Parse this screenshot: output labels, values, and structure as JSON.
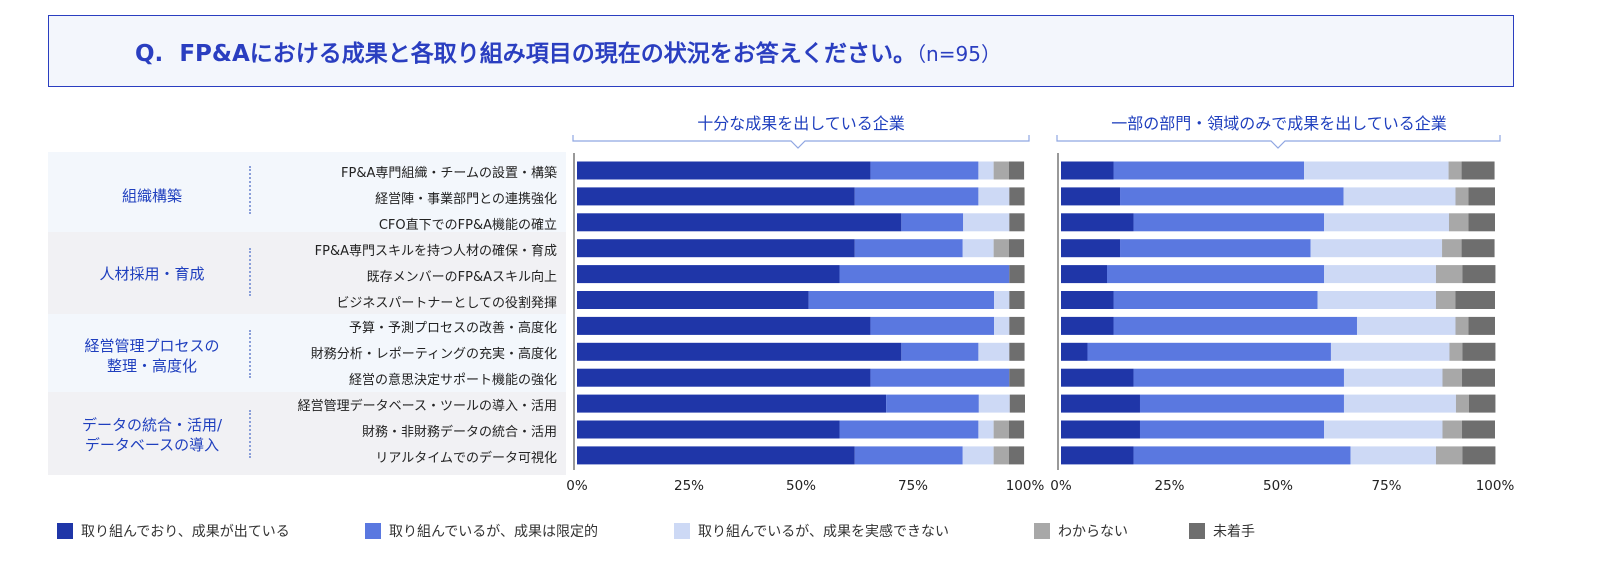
{
  "question": {
    "prefix": "Q.",
    "text": "FP&Aにおける成果と各取り組み項目の現在の状況をお答えください。",
    "n": "（n=95）"
  },
  "panels": [
    {
      "title": "十分な成果を出している企業"
    },
    {
      "title": "一部の部門・領域のみで成果を出している企業"
    }
  ],
  "groups": [
    {
      "label_lines": [
        "組織構築"
      ]
    },
    {
      "label_lines": [
        "人材採用・育成"
      ]
    },
    {
      "label_lines": [
        "経営管理プロセスの",
        "整理・高度化"
      ]
    },
    {
      "label_lines": [
        "データの統合・活用/",
        "データベースの導入"
      ]
    }
  ],
  "rows": [
    "FP&A専門組織・チームの設置・構築",
    "経営陣・事業部門との連携強化",
    "CFO直下でのFP&A機能の確立",
    "FP&A専門スキルを持つ人材の確保・育成",
    "既存メンバーのFP&Aスキル向上",
    "ビジネスパートナーとしての役割発揮",
    "予算・予測プロセスの改善・高度化",
    "財務分析・レポーティングの充実・高度化",
    "経営の意思決定サポート機能の強化",
    "経営管理データベース・ツールの導入・活用",
    "財務・非財務データの統合・活用",
    "リアルタイムでのデータ可視化"
  ],
  "colors": [
    "#1f36a8",
    "#5a78e0",
    "#cdd9f5",
    "#a8a8a8",
    "#6e6e6e"
  ],
  "chart_data": [
    {
      "type": "bar",
      "orientation": "horizontal",
      "stacked": true,
      "title": "十分な成果を出している企業",
      "categories": [
        "FP&A専門組織・チームの設置・構築",
        "経営陣・事業部門との連携強化",
        "CFO直下でのFP&A機能の確立",
        "FP&A専門スキルを持つ人材の確保・育成",
        "既存メンバーのFP&Aスキル向上",
        "ビジネスパートナーとしての役割発揮",
        "予算・予測プロセスの改善・高度化",
        "財務分析・レポーティングの充実・高度化",
        "経営の意思決定サポート機能の強化",
        "経営管理データベース・ツールの導入・活用",
        "財務・非財務データの統合・活用",
        "リアルタイムでのデータ可視化"
      ],
      "series": [
        {
          "name": "取り組んでおり、成果が出ている",
          "values": [
            65.5,
            62,
            72.4,
            62,
            58.6,
            51.7,
            65.5,
            72.4,
            65.5,
            69,
            58.6,
            62
          ]
        },
        {
          "name": "取り組んでいるが、成果は限定的",
          "values": [
            24.1,
            27.6,
            13.8,
            24.1,
            37.9,
            41.4,
            27.6,
            17.2,
            31,
            20.7,
            31,
            24.1
          ]
        },
        {
          "name": "取り組んでいるが、成果を実感できない",
          "values": [
            3.4,
            6.9,
            10.3,
            6.9,
            0,
            3.4,
            3.4,
            6.9,
            0,
            6.9,
            3.4,
            6.9
          ]
        },
        {
          "name": "わからない",
          "values": [
            3.4,
            0,
            0,
            3.4,
            0,
            0,
            0,
            0,
            0,
            0,
            3.4,
            3.4
          ]
        },
        {
          "name": "未着手",
          "values": [
            3.4,
            3.4,
            3.4,
            3.4,
            3.4,
            3.4,
            3.4,
            3.4,
            3.4,
            3.4,
            3.4,
            3.4
          ]
        }
      ],
      "xticks": [
        "0%",
        "25%",
        "50%",
        "75%",
        "100%"
      ],
      "xlim": [
        0,
        100
      ]
    },
    {
      "type": "bar",
      "orientation": "horizontal",
      "stacked": true,
      "title": "一部の部門・領域のみで成果を出している企業",
      "categories": [
        "FP&A専門組織・チームの設置・構築",
        "経営陣・事業部門との連携強化",
        "CFO直下でのFP&A機能の確立",
        "FP&A専門スキルを持つ人材の確保・育成",
        "既存メンバーのFP&Aスキル向上",
        "ビジネスパートナーとしての役割発揮",
        "予算・予測プロセスの改善・高度化",
        "財務分析・レポーティングの充実・高度化",
        "経営の意思決定サポート機能の強化",
        "経営管理データベース・ツールの導入・活用",
        "財務・非財務データの統合・活用",
        "リアルタイムでのデータ可視化"
      ],
      "series": [
        {
          "name": "取り組んでおり、成果が出ている",
          "values": [
            12.1,
            13.6,
            16.7,
            13.6,
            10.6,
            12.1,
            12.1,
            6.1,
            16.7,
            18.2,
            18.2,
            16.7
          ]
        },
        {
          "name": "取り組んでいるが、成果は限定的",
          "values": [
            43.9,
            51.5,
            43.9,
            43.9,
            50,
            47,
            56.1,
            56.1,
            48.5,
            47,
            42.4,
            50
          ]
        },
        {
          "name": "取り組んでいるが、成果を実感できない",
          "values": [
            33.3,
            25.8,
            28.8,
            30.3,
            25.8,
            27.3,
            22.7,
            27.3,
            22.7,
            25.8,
            27.3,
            19.7
          ]
        },
        {
          "name": "わからない",
          "values": [
            3,
            3,
            4.5,
            4.5,
            6.1,
            4.5,
            3,
            3,
            4.5,
            3,
            4.5,
            6.1
          ]
        },
        {
          "name": "未着手",
          "values": [
            7.6,
            6.1,
            6.1,
            7.6,
            7.6,
            9.1,
            6.1,
            7.6,
            7.6,
            6.1,
            7.6,
            7.6
          ]
        }
      ],
      "xticks": [
        "0%",
        "25%",
        "50%",
        "75%",
        "100%"
      ],
      "xlim": [
        0,
        100
      ]
    }
  ],
  "legend": [
    "取り組んでおり、成果が出ている",
    "取り組んでいるが、成果は限定的",
    "取り組んでいるが、成果を実感できない",
    "わからない",
    "未着手"
  ]
}
